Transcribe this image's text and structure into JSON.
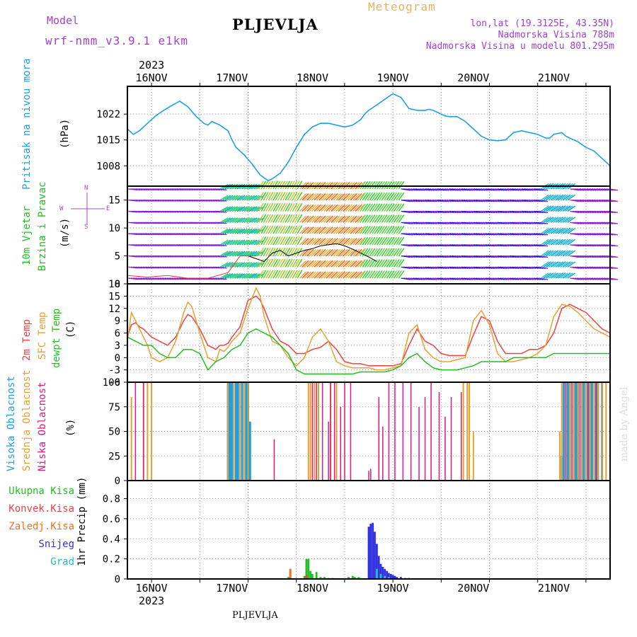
{
  "header": {
    "model_label": "Model",
    "model_name": "wrf-nmm_v3.9.1 e1km",
    "station": "PLJEVLJA",
    "product": "Meteogram",
    "coords": "lon,lat (19.3125E, 43.35N)",
    "altitude": "Nadmorska Visina 788m",
    "model_altitude": "Nadmorska Visina u modelu 801.295m",
    "footer_station": "PLJEVLJA",
    "credit": "made by Angel",
    "colors": {
      "model": "#a040d0",
      "product": "#e8b060",
      "coords": "#a040d0",
      "station": "#000000"
    }
  },
  "chart_data": [
    {
      "type": "line",
      "panel": "pressure",
      "ylabel": [
        "Pritisak na nivou mora",
        "(hPa)"
      ],
      "ylabel_colors": [
        "#1f9fe0",
        "#000000"
      ],
      "yticks": [
        1008,
        1015,
        1022
      ],
      "ylim": [
        1002.5,
        1029.5
      ],
      "x_dates": [
        "16NOV",
        "17NOV",
        "18NOV",
        "19NOV",
        "20NOV",
        "21NOV"
      ],
      "x_top_year": "2023",
      "x_bottom_year": "2023",
      "x_unit": "hours since 15NOV 12UTC",
      "grid": true,
      "series": [
        {
          "color": "#1fa0e0",
          "x": [
            0,
            3,
            6,
            10,
            14,
            18,
            22,
            26,
            30,
            34,
            38,
            40,
            42,
            46,
            50,
            52,
            54,
            58,
            62,
            66,
            70,
            72,
            76,
            80,
            84,
            88,
            92,
            96,
            100,
            104,
            108,
            112,
            116,
            118,
            120,
            124,
            128,
            132,
            136,
            140,
            144,
            148,
            150,
            152,
            156,
            158,
            160,
            164,
            168,
            172,
            176,
            180,
            184,
            188,
            192,
            196,
            200,
            204,
            208,
            210,
            212,
            216,
            218,
            220,
            224,
            228,
            232,
            236,
            240
          ],
          "values": [
            1018,
            1016.5,
            1017.5,
            1019.5,
            1021.5,
            1023,
            1024.3,
            1025.5,
            1024,
            1021.5,
            1019.5,
            1019,
            1020,
            1019,
            1017.5,
            1015,
            1013,
            1011,
            1008.5,
            1005.5,
            1004,
            1004.5,
            1006,
            1009,
            1013,
            1016.5,
            1018.5,
            1019.5,
            1019.5,
            1019,
            1018.5,
            1019,
            1020.5,
            1022,
            1023,
            1024.5,
            1026,
            1027.5,
            1026.5,
            1023.5,
            1023,
            1023,
            1023.3,
            1023,
            1022,
            1021.5,
            1021.3,
            1021.3,
            1020,
            1018,
            1016,
            1015,
            1014.8,
            1015,
            1017,
            1017.5,
            1017,
            1016.5,
            1015.5,
            1015.5,
            1016.5,
            1017,
            1016,
            1015.5,
            1014.5,
            1013,
            1012,
            1010,
            1008
          ]
        }
      ]
    },
    {
      "type": "line",
      "panel": "wind",
      "ylabel": [
        "10m Vjetar",
        "Brzina i Pravac",
        "(m/s)"
      ],
      "ylabel_colors": [
        "#20c020",
        "#20c020",
        "#000000"
      ],
      "compass": [
        "S",
        "N",
        "W",
        "E"
      ],
      "compass_color": "#b040e0",
      "yticks": [
        0,
        5,
        10,
        15
      ],
      "ylim": [
        0,
        17.5
      ],
      "grid": true,
      "barb_rows": [
        1,
        3,
        5,
        7,
        9,
        11,
        13,
        15,
        17
      ],
      "barb_colors": [
        "#2020d0",
        "#8020e0",
        "#a020c0",
        "#00a0e0",
        "#20c0c0",
        "#20d020",
        "#60d040",
        "#d0c020",
        "#f0a020",
        "#f05020",
        "#e03060"
      ],
      "series": [
        {
          "name": "speed",
          "color": "#000000",
          "x": [
            60,
            64,
            68,
            72,
            76,
            80,
            84,
            88,
            92,
            96,
            100,
            104,
            108,
            112,
            116,
            120,
            124
          ],
          "values": [
            5,
            4.5,
            4,
            5.5,
            6,
            5,
            5.5,
            6,
            6.3,
            6.8,
            7,
            7.2,
            6.8,
            6.2,
            5.5,
            4.8,
            4
          ]
        },
        {
          "name": "gust",
          "color": "#ff3030",
          "x": [
            0,
            10,
            20,
            30,
            40,
            50,
            56,
            60,
            64
          ],
          "values": [
            1.5,
            1.2,
            1.5,
            1,
            1,
            2,
            5,
            5,
            5
          ]
        }
      ]
    },
    {
      "type": "line",
      "panel": "temperature",
      "ylabel": [
        "2m Temp",
        "SFC Temp",
        "dewpt Temp",
        "(C)"
      ],
      "ylabel_colors": [
        "#f04040",
        "#e8a030",
        "#20c020",
        "#000000"
      ],
      "yticks": [
        -6,
        -3,
        0,
        3,
        6,
        9,
        12,
        15,
        18
      ],
      "ylim": [
        -6,
        18
      ],
      "grid": true,
      "series": [
        {
          "name": "2m Temp",
          "color": "#f04040",
          "x": [
            0,
            2,
            4,
            6,
            8,
            10,
            12,
            16,
            20,
            24,
            28,
            30,
            32,
            36,
            40,
            44,
            46,
            48,
            50,
            52,
            56,
            60,
            64,
            66,
            68,
            72,
            76,
            80,
            84,
            88,
            92,
            96,
            100,
            104,
            108,
            112,
            116,
            120,
            124,
            128,
            132,
            136,
            140,
            144,
            148,
            152,
            156,
            160,
            164,
            168,
            172,
            176,
            180,
            184,
            188,
            192,
            196,
            200,
            204,
            208,
            212,
            216,
            220,
            224,
            228,
            232,
            236,
            240
          ],
          "values": [
            5,
            8,
            8.5,
            7.5,
            7,
            6,
            5,
            4,
            3,
            5,
            9,
            10.5,
            10,
            7,
            3,
            2,
            3,
            3,
            3.5,
            5,
            7.5,
            14,
            15,
            14,
            12,
            7,
            4,
            3,
            1,
            1,
            2,
            2.5,
            4,
            2,
            -1,
            -1.5,
            -1.5,
            -2,
            -2,
            -2,
            -2,
            -1.5,
            3,
            7,
            4,
            3,
            1,
            0.5,
            0.5,
            0.5,
            5.5,
            10,
            9,
            4,
            1,
            1,
            1,
            2,
            2,
            3,
            6,
            12,
            13,
            12,
            11,
            9,
            7,
            6
          ]
        },
        {
          "name": "SFC Temp",
          "color": "#e8a030",
          "x": [
            0,
            2,
            4,
            6,
            8,
            10,
            12,
            16,
            20,
            24,
            28,
            30,
            32,
            36,
            40,
            44,
            46,
            48,
            50,
            52,
            56,
            60,
            64,
            66,
            68,
            72,
            76,
            80,
            84,
            88,
            92,
            96,
            100,
            104,
            108,
            112,
            116,
            120,
            124,
            128,
            132,
            136,
            140,
            144,
            148,
            152,
            156,
            160,
            164,
            168,
            172,
            176,
            180,
            184,
            188,
            192,
            196,
            200,
            204,
            208,
            212,
            216,
            220,
            224,
            228,
            232,
            236,
            240
          ],
          "values": [
            4,
            11,
            9,
            7,
            5,
            3,
            0,
            -1,
            0,
            4,
            11,
            13.5,
            12.5,
            6,
            0,
            -1,
            2,
            1.5,
            2.5,
            4,
            6,
            12,
            17,
            15,
            10,
            4,
            3,
            0,
            -2,
            0,
            5,
            7,
            4,
            -1,
            -2,
            -2.5,
            -2.5,
            -2.5,
            -3,
            -3,
            -2.5,
            -2,
            6,
            8,
            2,
            0,
            -1,
            -1,
            -0.5,
            0,
            9,
            11.5,
            8,
            1,
            -1,
            -1,
            -0.5,
            0,
            1,
            3,
            10,
            13,
            12.5,
            11,
            9,
            7,
            6,
            5
          ]
        },
        {
          "name": "dewpt Temp",
          "color": "#20c020",
          "x": [
            0,
            4,
            8,
            12,
            16,
            20,
            24,
            28,
            32,
            36,
            40,
            44,
            48,
            52,
            56,
            60,
            64,
            68,
            72,
            76,
            80,
            84,
            88,
            92,
            96,
            100,
            104,
            108,
            112,
            116,
            120,
            124,
            128,
            132,
            136,
            140,
            144,
            148,
            152,
            156,
            160,
            164,
            168,
            172,
            176,
            180,
            184,
            188,
            192,
            196,
            200,
            204,
            208,
            212,
            216,
            220,
            224,
            228,
            232,
            236,
            240
          ],
          "values": [
            5,
            4,
            3,
            3,
            1,
            0,
            0,
            2,
            2,
            1,
            -3,
            -1,
            0,
            2,
            3,
            6,
            7,
            6,
            5,
            3,
            1,
            -3,
            -4,
            -4,
            -4,
            -4,
            -4,
            -4,
            -4,
            -3.5,
            -3.5,
            -3.5,
            -3.5,
            -3,
            -2,
            0,
            1,
            -1,
            -2.5,
            -3,
            -3,
            -3,
            -2.5,
            -2,
            -1,
            -1,
            -1,
            -1,
            0,
            0,
            0,
            0,
            0,
            1,
            1,
            1,
            1,
            1,
            1,
            1,
            1
          ]
        }
      ]
    },
    {
      "type": "bar",
      "panel": "cloud",
      "ylabel": [
        "Visoka Oblacnost",
        "Srednja Oblacnost",
        "Niska Oblacnost",
        "(%)"
      ],
      "ylabel_colors": [
        "#1f9fe0",
        "#e8a030",
        "#e01880",
        "#000000"
      ],
      "yticks": [
        0,
        25,
        50,
        75,
        100
      ],
      "ylim": [
        0,
        100
      ],
      "grid": true,
      "series": [
        {
          "name": "Visoka Oblacnost",
          "color": "#1f9fe0",
          "x": [
            50,
            51,
            52,
            54,
            55,
            57,
            59,
            60,
            61,
            216,
            217,
            219,
            220,
            222,
            223,
            224,
            226,
            227,
            229,
            230,
            231,
            233,
            234,
            236
          ],
          "values": [
            100,
            100,
            100,
            100,
            100,
            100,
            100,
            100,
            60,
            25,
            100,
            100,
            100,
            100,
            100,
            100,
            100,
            100,
            100,
            100,
            100,
            100,
            100,
            100
          ]
        },
        {
          "name": "Srednja Oblacnost",
          "color": "#e8a030",
          "x": [
            2,
            8,
            10,
            12,
            50,
            53,
            56,
            58,
            60,
            90,
            91,
            93,
            95,
            101,
            104,
            167,
            169,
            170,
            172,
            215,
            216,
            218,
            220,
            222,
            224,
            226,
            228,
            230,
            232,
            234,
            236,
            238,
            240
          ],
          "values": [
            85,
            100,
            100,
            100,
            100,
            100,
            100,
            100,
            100,
            100,
            100,
            100,
            100,
            100,
            100,
            100,
            100,
            100,
            50,
            50,
            100,
            100,
            100,
            100,
            100,
            100,
            100,
            100,
            100,
            100,
            100,
            100,
            100
          ]
        },
        {
          "name": "Niska Oblacnost",
          "color": "#e01880",
          "x": [
            4,
            8,
            73,
            92,
            94,
            97,
            100,
            101,
            103,
            106,
            108,
            111,
            120,
            121,
            125,
            127,
            130,
            133,
            137,
            141,
            145,
            148,
            151,
            155,
            158,
            161,
            166,
            218,
            221,
            225,
            229,
            233
          ],
          "values": [
            100,
            100,
            42,
            100,
            100,
            100,
            60,
            100,
            100,
            75,
            100,
            100,
            10,
            12,
            85,
            55,
            100,
            100,
            100,
            100,
            75,
            85,
            100,
            90,
            65,
            85,
            90,
            100,
            100,
            100,
            100,
            100
          ]
        }
      ]
    },
    {
      "type": "bar",
      "panel": "precip",
      "ylabel": [
        "1hr Precip (mm)"
      ],
      "legend": [
        {
          "label": "Ukupna Kisa",
          "color": "#20c020"
        },
        {
          "label": "Konvek.Kisa",
          "color": "#f04040"
        },
        {
          "label": "Zaledj.Kisa",
          "color": "#f07020"
        },
        {
          "label": "Snijeg",
          "color": "#3030e0"
        },
        {
          "label": "Grad",
          "color": "#20c0c0"
        }
      ],
      "yticks": [
        0,
        0.2,
        0.4,
        0.6,
        0.8
      ],
      "ylim": [
        0,
        0.98
      ],
      "grid": true,
      "series": [
        {
          "name": "Ukupna Kisa",
          "color": "#20c020",
          "x": [
            80,
            88,
            89,
            90,
            91,
            92,
            94,
            96,
            97,
            98,
            100,
            102,
            110,
            112,
            113,
            114,
            115,
            116,
            130,
            132
          ],
          "values": [
            0.02,
            0.03,
            0.2,
            0.2,
            0.08,
            0.05,
            0.07,
            0.02,
            0.01,
            0.02,
            0.01,
            0.01,
            0.02,
            0.03,
            0.02,
            0.01,
            0.02,
            0.01,
            0.01,
            0.01
          ]
        },
        {
          "name": "Konvek.Kisa",
          "color": "#f04040",
          "x": [
            81,
            89
          ],
          "values": [
            0.1,
            0.04
          ]
        },
        {
          "name": "Zaledj.Kisa",
          "color": "#f07020",
          "x": [
            81
          ],
          "values": [
            0.1
          ]
        },
        {
          "name": "Snijeg",
          "color": "#3030e0",
          "x": [
            120,
            121,
            122,
            123,
            124,
            125,
            126,
            127,
            128,
            129,
            130,
            131,
            132,
            133,
            134,
            136,
            138,
            140
          ],
          "values": [
            0.52,
            0.55,
            0.56,
            0.47,
            0.35,
            0.23,
            0.15,
            0.12,
            0.1,
            0.08,
            0.06,
            0.05,
            0.04,
            0.03,
            0.02,
            0.02,
            0.01,
            0.01
          ]
        },
        {
          "name": "Grad",
          "color": "#20c0c0",
          "x": [
            124,
            126,
            128,
            130
          ],
          "values": [
            0.1,
            0.05,
            0.03,
            0.02
          ]
        }
      ]
    }
  ]
}
